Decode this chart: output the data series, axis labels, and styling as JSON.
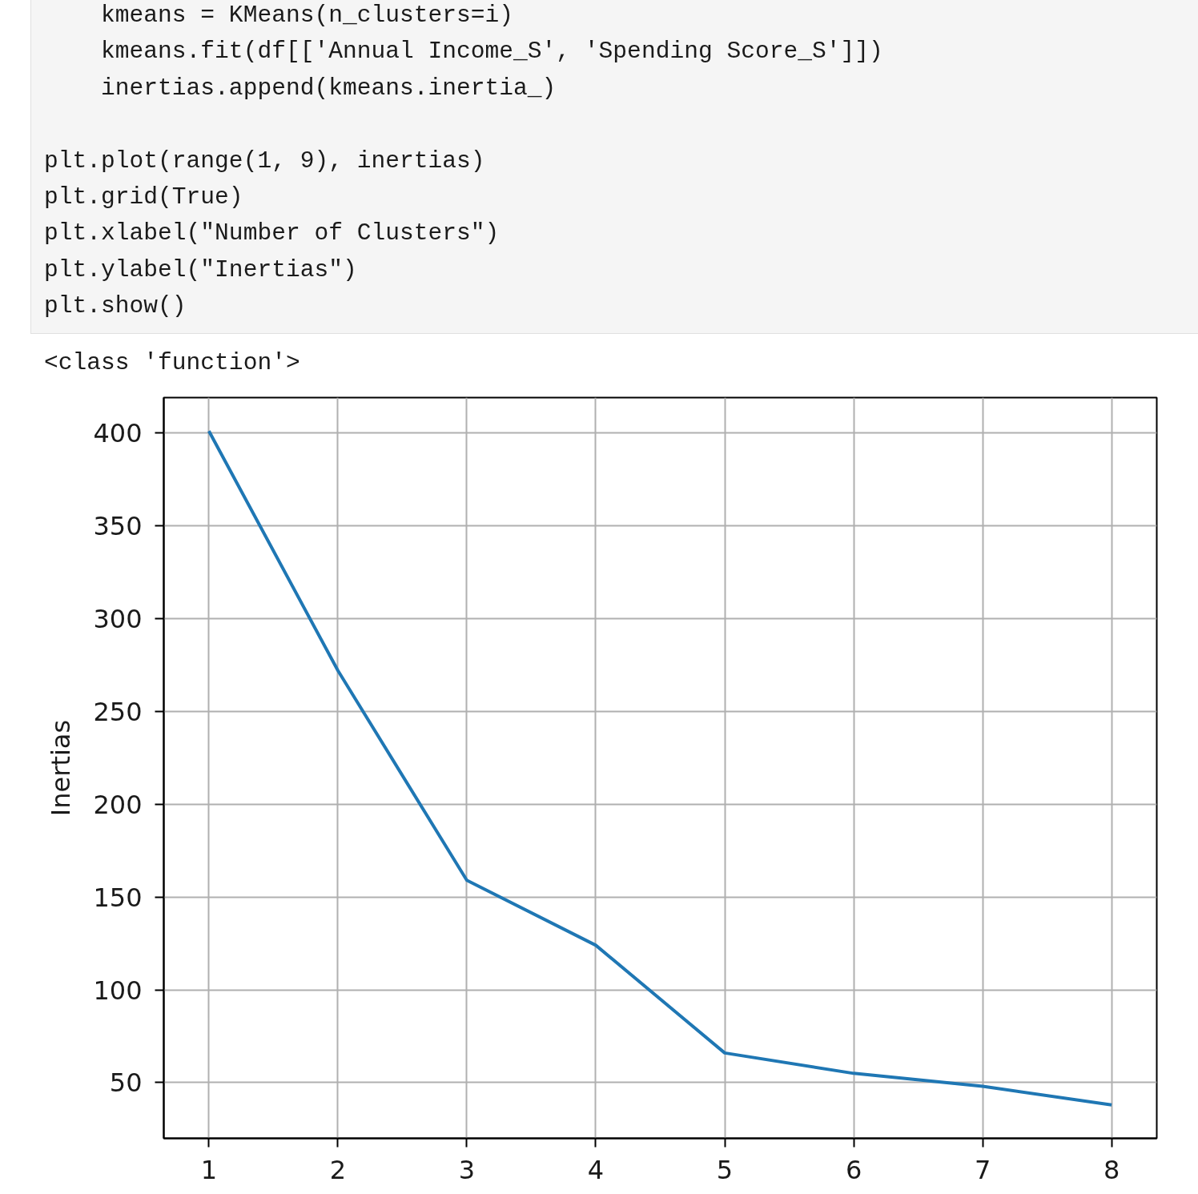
{
  "chart_data": {
    "type": "line",
    "ylabel": "Inertias",
    "annotations": [
      "    kmeans = KMeans(n_clusters=i)\n    kmeans.fit(df[['Annual Income_S', 'Spending Score_S']])\n    inertias.append(kmeans.inertia_)\n\nplt.plot(range(1, 9), inertias)\nplt.grid(True)\nplt.xlabel(\"Number of Clusters\")\nplt.ylabel(\"Inertias\")\nplt.show()",
      "<class 'function'>"
    ],
    "x": [
      1,
      2,
      3,
      4,
      5,
      6,
      7,
      8
    ],
    "series": [
      {
        "color": "#1f77b4",
        "values": [
          401,
          272,
          159,
          124,
          66,
          55,
          48,
          38
        ]
      }
    ],
    "xlim": [
      0.65,
      8.35
    ],
    "xticks": [
      1,
      2,
      3,
      4,
      5,
      6,
      7,
      8
    ],
    "ylim": [
      20,
      419
    ],
    "yticks": [
      50,
      100,
      150,
      200,
      250,
      300,
      350,
      400
    ],
    "grid": true,
    "line_style": "solid"
  }
}
